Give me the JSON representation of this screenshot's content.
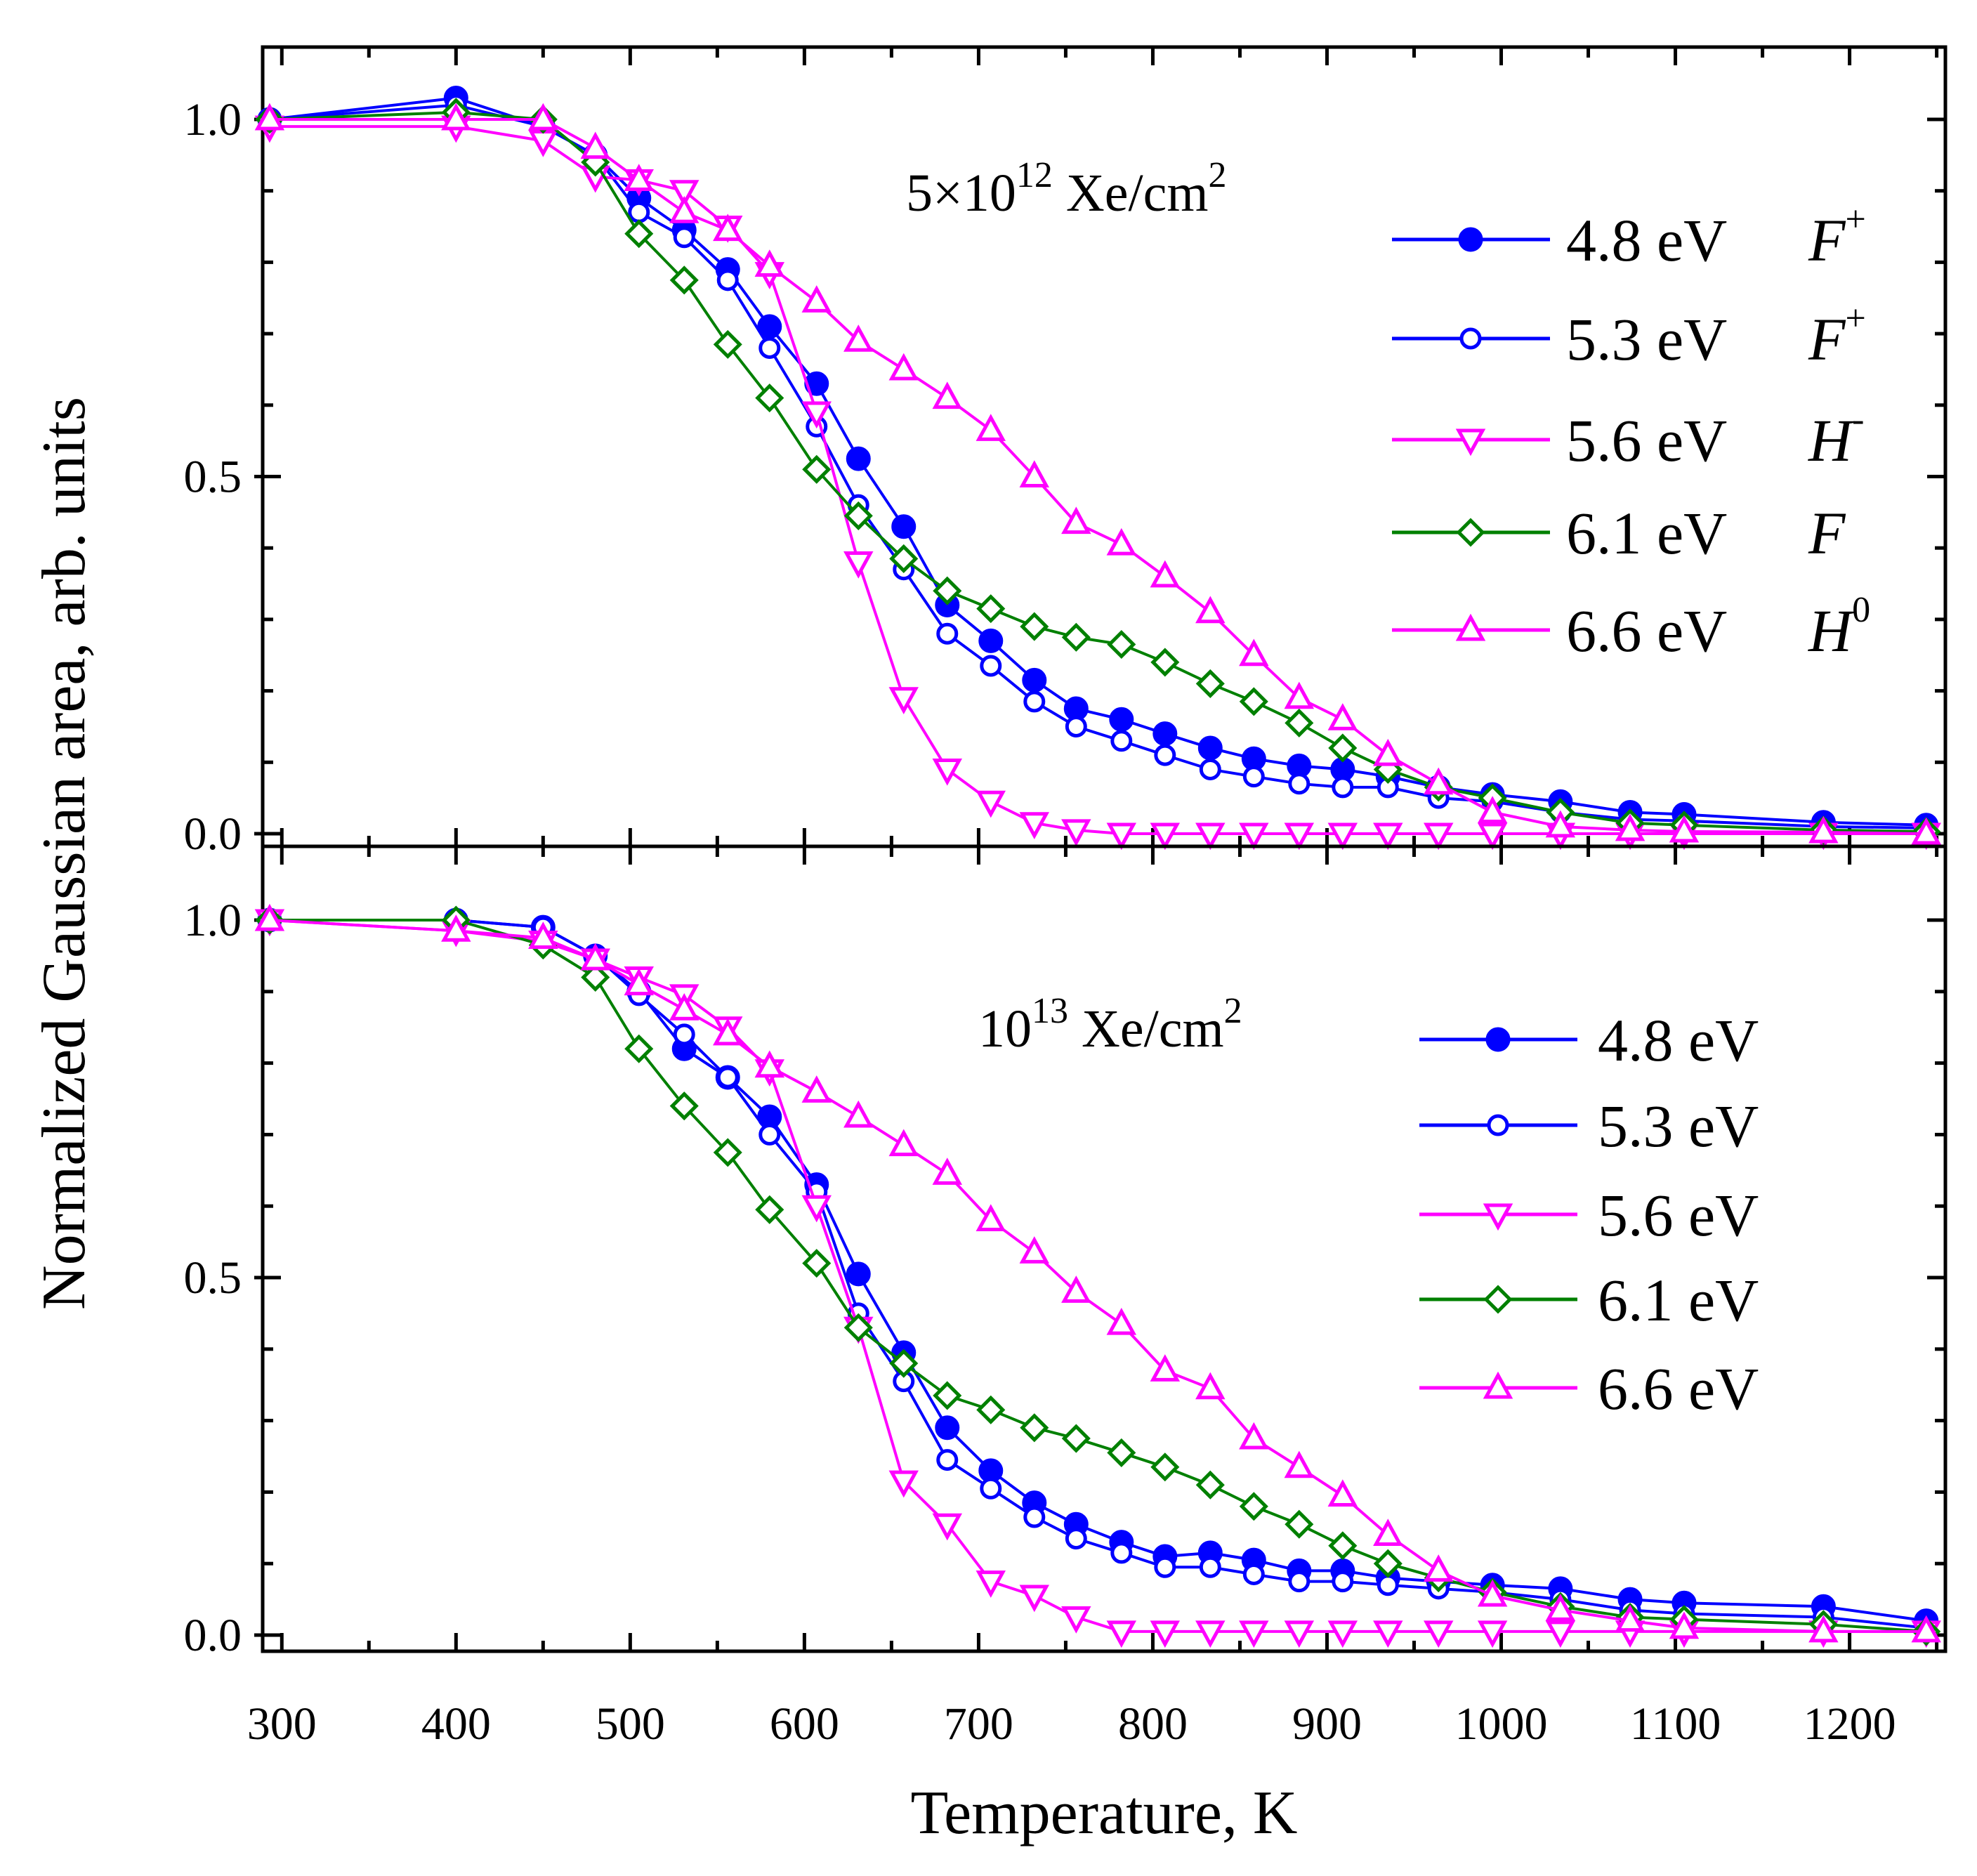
{
  "chart_data": [
    {
      "type": "line",
      "panel": "top",
      "annotation": {
        "base": "5×10",
        "exp": "12",
        "unit": " Xe/cm",
        "unit_exp": "2"
      },
      "xlabel": "Temperature, K",
      "ylabel": "Normalized Gaussian area, arb. units",
      "xlim": [
        289,
        1255
      ],
      "ylim": [
        -0.01,
        1.1
      ],
      "xticks": [
        300,
        400,
        500,
        600,
        700,
        800,
        900,
        1000,
        1100,
        1200
      ],
      "yticks": [
        "0.0",
        "0.5",
        "1.0"
      ],
      "legend_position": "right",
      "x": [
        293,
        400,
        450,
        480,
        505,
        531,
        556,
        580,
        607,
        631,
        657,
        682,
        707,
        732,
        756,
        782,
        807,
        833,
        858,
        884,
        909,
        935,
        964,
        995,
        1034,
        1074,
        1105,
        1185,
        1244
      ],
      "series": [
        {
          "name": "4.8 eV",
          "assignment": "F",
          "assignment_sup": "+",
          "color": "#0000ff",
          "marker": "circle-filled",
          "values": [
            1.0,
            1.03,
            0.99,
            0.95,
            0.89,
            0.845,
            0.79,
            0.71,
            0.63,
            0.525,
            0.43,
            0.32,
            0.27,
            0.215,
            0.175,
            0.16,
            0.14,
            0.12,
            0.105,
            0.095,
            0.09,
            0.08,
            0.065,
            0.055,
            0.045,
            0.03,
            0.027,
            0.016,
            0.012
          ]
        },
        {
          "name": "5.3 eV",
          "assignment": "F",
          "assignment_sup": "+",
          "color": "#0000ff",
          "marker": "circle-open",
          "values": [
            1.0,
            1.02,
            0.99,
            0.95,
            0.87,
            0.835,
            0.775,
            0.68,
            0.57,
            0.46,
            0.37,
            0.28,
            0.235,
            0.185,
            0.15,
            0.13,
            0.11,
            0.09,
            0.08,
            0.07,
            0.065,
            0.065,
            0.05,
            0.045,
            0.03,
            0.02,
            0.018,
            0.01,
            0.008
          ]
        },
        {
          "name": "5.6 eV",
          "assignment": "H",
          "assignment_sup": "-",
          "color": "#ff00ff",
          "marker": "triangle-down",
          "values": [
            0.99,
            0.99,
            0.97,
            0.92,
            0.915,
            0.9,
            0.85,
            0.785,
            0.59,
            0.38,
            0.19,
            0.09,
            0.045,
            0.015,
            0.005,
            0.0,
            0.0,
            0.0,
            0.0,
            0.0,
            0.0,
            0.0,
            0.0,
            0.0,
            0.0,
            0.0,
            0.0,
            0.0,
            0.0
          ]
        },
        {
          "name": "6.1 eV",
          "assignment": "F",
          "assignment_sup": "",
          "color": "#008000",
          "marker": "diamond-open",
          "values": [
            1.0,
            1.01,
            1.0,
            0.94,
            0.84,
            0.775,
            0.685,
            0.61,
            0.51,
            0.445,
            0.385,
            0.34,
            0.315,
            0.29,
            0.275,
            0.265,
            0.24,
            0.21,
            0.185,
            0.155,
            0.12,
            0.09,
            0.065,
            0.05,
            0.03,
            0.015,
            0.012,
            0.005,
            0.003
          ]
        },
        {
          "name": "6.6 eV",
          "assignment": "H",
          "assignment_sup": "0",
          "color": "#ff00ff",
          "marker": "triangle-up",
          "values": [
            1.0,
            1.0,
            1.0,
            0.96,
            0.915,
            0.87,
            0.845,
            0.795,
            0.745,
            0.69,
            0.65,
            0.61,
            0.565,
            0.5,
            0.435,
            0.405,
            0.36,
            0.31,
            0.25,
            0.19,
            0.16,
            0.11,
            0.07,
            0.03,
            0.01,
            0.005,
            0.003,
            0.002,
            0.0
          ]
        }
      ]
    },
    {
      "type": "line",
      "panel": "bottom",
      "annotation": {
        "base": "10",
        "exp": "13",
        "unit": " Xe/cm",
        "unit_exp": "2"
      },
      "xlim": [
        289,
        1255
      ],
      "ylim": [
        -0.01,
        1.1
      ],
      "yticks": [
        "0.0",
        "0.5",
        "1.0"
      ],
      "legend_position": "right",
      "x": [
        293,
        400,
        450,
        480,
        505,
        531,
        556,
        580,
        607,
        631,
        657,
        682,
        707,
        732,
        756,
        782,
        807,
        833,
        858,
        884,
        909,
        935,
        964,
        995,
        1034,
        1074,
        1105,
        1185,
        1244
      ],
      "series": [
        {
          "name": "4.8 eV",
          "color": "#0000ff",
          "marker": "circle-filled",
          "values": [
            1.0,
            1.0,
            0.99,
            0.95,
            0.9,
            0.82,
            0.78,
            0.725,
            0.63,
            0.505,
            0.395,
            0.29,
            0.23,
            0.185,
            0.155,
            0.13,
            0.11,
            0.115,
            0.105,
            0.09,
            0.09,
            0.08,
            0.075,
            0.07,
            0.065,
            0.05,
            0.045,
            0.04,
            0.02
          ]
        },
        {
          "name": "5.3 eV",
          "color": "#0000ff",
          "marker": "circle-open",
          "values": [
            1.0,
            1.0,
            0.99,
            0.95,
            0.895,
            0.84,
            0.78,
            0.7,
            0.62,
            0.45,
            0.355,
            0.245,
            0.205,
            0.165,
            0.135,
            0.115,
            0.095,
            0.095,
            0.085,
            0.075,
            0.075,
            0.07,
            0.065,
            0.06,
            0.05,
            0.035,
            0.03,
            0.025,
            0.01
          ]
        },
        {
          "name": "5.6 eV",
          "color": "#ff00ff",
          "marker": "triangle-down",
          "values": [
            1.0,
            0.985,
            0.97,
            0.945,
            0.92,
            0.895,
            0.85,
            0.79,
            0.6,
            0.43,
            0.215,
            0.155,
            0.075,
            0.055,
            0.025,
            0.005,
            0.005,
            0.005,
            0.005,
            0.005,
            0.005,
            0.005,
            0.005,
            0.005,
            0.005,
            0.005,
            0.005,
            0.005,
            0.005
          ]
        },
        {
          "name": "6.1 eV",
          "color": "#008000",
          "marker": "diamond-open",
          "values": [
            1.0,
            1.0,
            0.965,
            0.92,
            0.82,
            0.74,
            0.675,
            0.595,
            0.52,
            0.43,
            0.38,
            0.335,
            0.315,
            0.29,
            0.275,
            0.255,
            0.235,
            0.21,
            0.18,
            0.155,
            0.125,
            0.1,
            0.08,
            0.06,
            0.04,
            0.025,
            0.022,
            0.015,
            0.005
          ]
        },
        {
          "name": "6.6 eV",
          "color": "#ff00ff",
          "marker": "triangle-up",
          "values": [
            1.0,
            0.985,
            0.975,
            0.945,
            0.91,
            0.875,
            0.84,
            0.795,
            0.76,
            0.725,
            0.685,
            0.645,
            0.58,
            0.535,
            0.48,
            0.435,
            0.37,
            0.345,
            0.275,
            0.235,
            0.195,
            0.14,
            0.09,
            0.055,
            0.035,
            0.02,
            0.01,
            0.005,
            0.005
          ]
        }
      ]
    }
  ]
}
